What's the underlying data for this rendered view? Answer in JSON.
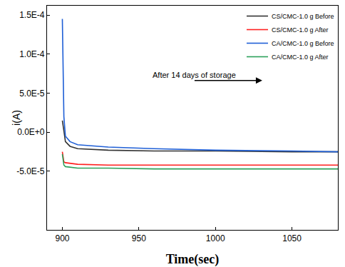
{
  "chart_data": {
    "type": "line",
    "x_label": "Time(sec)",
    "y_label": "i(A)",
    "x": [
      900,
      900.5,
      901,
      902,
      905,
      910,
      930,
      960,
      1000,
      1050,
      1080
    ],
    "series": [
      {
        "name": "CS/CMC-1.0 g Before",
        "color": "#333333",
        "values": [
          1.5e-05,
          1e-05,
          2e-06,
          -1.2e-05,
          -1.8e-05,
          -2.1e-05,
          -2.3e-05,
          -2.4e-05,
          -2.4e-05,
          -2.5e-05,
          -2.5e-05
        ]
      },
      {
        "name": "CS/CMC-1.0 g After",
        "color": "#ff2020",
        "values": [
          -2.5e-05,
          -3.5e-05,
          -3.8e-05,
          -3.9e-05,
          -4e-05,
          -4.1e-05,
          -4.2e-05,
          -4.2e-05,
          -4.2e-05,
          -4.2e-05,
          -4.2e-05
        ]
      },
      {
        "name": "CA/CMC-1.0 g Before",
        "color": "#1f5fd6",
        "values": [
          0.000145,
          9.5e-05,
          2e-05,
          -5e-06,
          -1.2e-05,
          -1.6e-05,
          -1.9e-05,
          -2.1e-05,
          -2.3e-05,
          -2.4e-05,
          -2.5e-05
        ]
      },
      {
        "name": "CA/CMC-1.0 g After",
        "color": "#2ca05a",
        "values": [
          -2.8e-05,
          -3.8e-05,
          -4.2e-05,
          -4.4e-05,
          -4.5e-05,
          -4.6e-05,
          -4.6e-05,
          -4.7e-05,
          -4.7e-05,
          -4.7e-05,
          -4.7e-05
        ]
      }
    ],
    "xlim": [
      890,
      1080
    ],
    "xticks": [
      900,
      950,
      1000,
      1050
    ],
    "ylim": [
      -0.000125,
      0.000162
    ],
    "yticks": [
      {
        "value": -5e-05,
        "label": "-5.0E-5"
      },
      {
        "value": 0,
        "label": "0.0E+0"
      },
      {
        "value": 5e-05,
        "label": "5.0E-5"
      },
      {
        "value": 0.0001,
        "label": "1.0E-4"
      },
      {
        "value": 0.00015,
        "label": "1.5E-4"
      }
    ],
    "annotations": [
      "After 14 days of storage"
    ],
    "legend": "top right",
    "grid": false
  }
}
